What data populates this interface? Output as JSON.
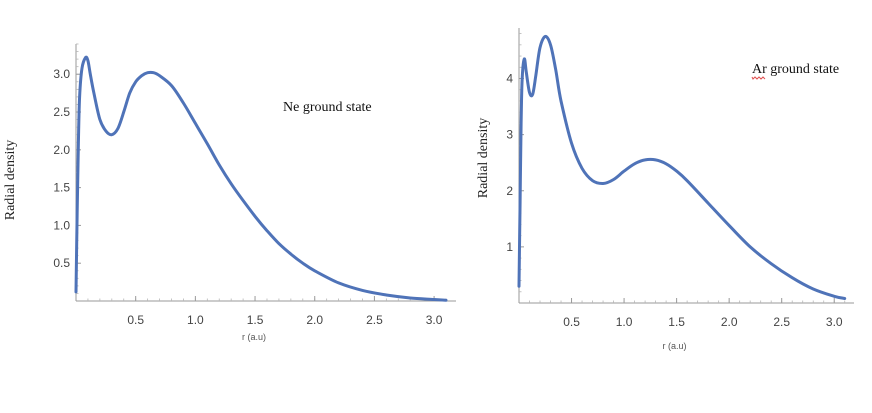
{
  "chart_data": [
    {
      "type": "line",
      "title": "",
      "annotation": "Ne ground state",
      "xlabel": "r (a.u)",
      "ylabel": "Radial density",
      "xlim": [
        0,
        3.15
      ],
      "ylim": [
        0,
        3.4
      ],
      "xticks": [
        0.5,
        1.0,
        1.5,
        2.0,
        2.5,
        3.0
      ],
      "xtick_labels": [
        "0.5",
        "1.0",
        "1.5",
        "2.0",
        "2.5",
        "3.0"
      ],
      "yticks": [
        0.5,
        1.0,
        1.5,
        2.0,
        2.5,
        3.0
      ],
      "ytick_labels": [
        "0.5",
        "1.0",
        "1.5",
        "2.0",
        "2.5",
        "3.0"
      ],
      "grid": false,
      "color": "#4f73b8",
      "series": [
        {
          "x": [
            0.0,
            0.01,
            0.02,
            0.03,
            0.05,
            0.08,
            0.1,
            0.12,
            0.15,
            0.2,
            0.25,
            0.3,
            0.35,
            0.4,
            0.45,
            0.5,
            0.55,
            0.6,
            0.65,
            0.7,
            0.8,
            0.9,
            1.0,
            1.1,
            1.2,
            1.3,
            1.4,
            1.5,
            1.6,
            1.7,
            1.8,
            1.9,
            2.0,
            2.2,
            2.4,
            2.6,
            2.8,
            3.0,
            3.1
          ],
          "y": [
            0.12,
            1.2,
            2.1,
            2.7,
            3.08,
            3.22,
            3.18,
            3.0,
            2.75,
            2.4,
            2.25,
            2.2,
            2.28,
            2.5,
            2.75,
            2.9,
            2.98,
            3.02,
            3.02,
            2.98,
            2.85,
            2.62,
            2.35,
            2.08,
            1.8,
            1.55,
            1.33,
            1.12,
            0.93,
            0.76,
            0.62,
            0.5,
            0.4,
            0.24,
            0.14,
            0.08,
            0.04,
            0.02,
            0.01
          ]
        }
      ]
    },
    {
      "type": "line",
      "title": "",
      "annotation": "Ar ground state",
      "xlabel": "r (a.u)",
      "ylabel": "Radial density",
      "xlim": [
        0,
        3.15
      ],
      "ylim": [
        0,
        4.9
      ],
      "xticks": [
        0.5,
        1.0,
        1.5,
        2.0,
        2.5,
        3.0
      ],
      "xtick_labels": [
        "0.5",
        "1.0",
        "1.5",
        "2.0",
        "2.5",
        "3.0"
      ],
      "yticks": [
        1,
        2,
        3,
        4
      ],
      "ytick_labels": [
        "1",
        "2",
        "3",
        "4"
      ],
      "grid": false,
      "color": "#4f73b8",
      "series": [
        {
          "x": [
            0.0,
            0.01,
            0.02,
            0.03,
            0.05,
            0.07,
            0.1,
            0.13,
            0.16,
            0.2,
            0.25,
            0.3,
            0.35,
            0.4,
            0.5,
            0.6,
            0.7,
            0.8,
            0.9,
            1.0,
            1.1,
            1.2,
            1.3,
            1.4,
            1.5,
            1.6,
            1.8,
            2.0,
            2.2,
            2.4,
            2.6,
            2.8,
            3.0,
            3.1
          ],
          "y": [
            0.3,
            1.8,
            3.2,
            4.0,
            4.35,
            4.1,
            3.75,
            3.72,
            4.05,
            4.55,
            4.75,
            4.6,
            4.15,
            3.6,
            2.85,
            2.4,
            2.18,
            2.13,
            2.2,
            2.35,
            2.48,
            2.55,
            2.55,
            2.48,
            2.35,
            2.18,
            1.78,
            1.38,
            1.0,
            0.7,
            0.45,
            0.25,
            0.12,
            0.08
          ]
        }
      ]
    }
  ]
}
